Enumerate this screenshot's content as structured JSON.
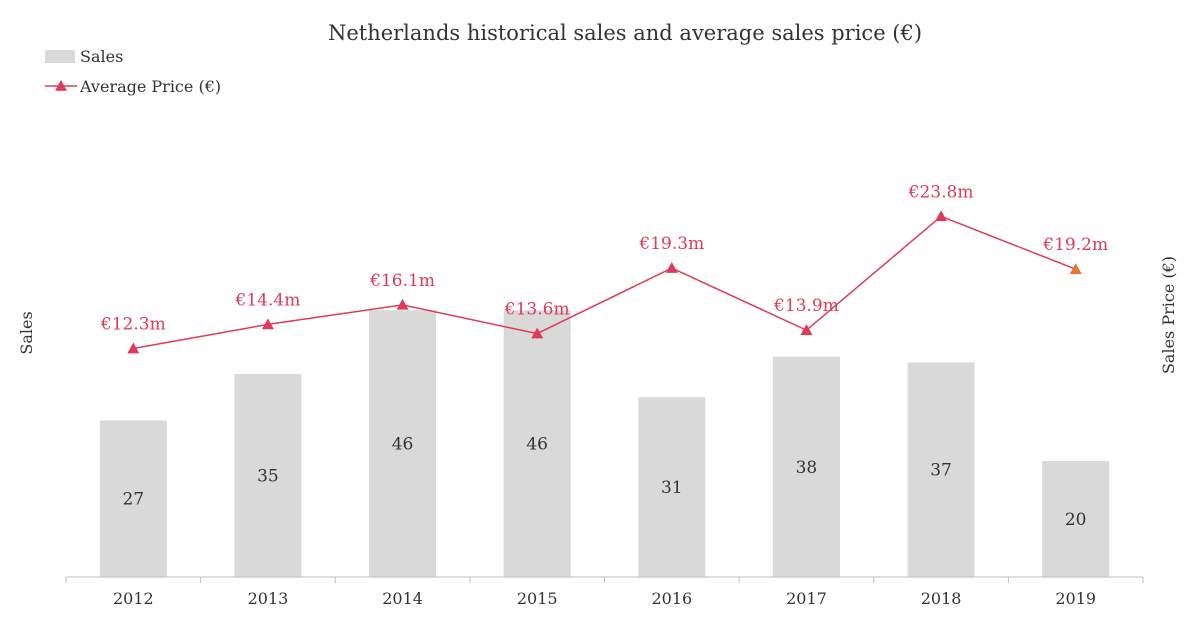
{
  "colors": {
    "bar": "#d9d9d9",
    "line": "#e03a5a",
    "price_label": "#e03a5a",
    "text": "#333333",
    "axis": "#bfbfbf",
    "last_marker": "#e8762c"
  },
  "chart_data": {
    "type": "bar",
    "title": "Netherlands historical sales and average sales price (€)",
    "ylabel_left": "Sales",
    "ylabel_right": "Sales Price (€)",
    "categories": [
      "2012",
      "2013",
      "2014",
      "2015",
      "2016",
      "2017",
      "2018",
      "2019"
    ],
    "legend_position": "top-left",
    "grid": false,
    "series": [
      {
        "name": "Sales",
        "type": "bar",
        "axis": "left",
        "values": [
          27,
          35,
          46,
          46,
          31,
          38,
          37,
          20
        ],
        "labels": [
          "27",
          "35",
          "46",
          "46",
          "31",
          "38",
          "37",
          "20"
        ]
      },
      {
        "name": "Average Price (€)",
        "type": "line",
        "axis": "right",
        "unit": "€m",
        "values": [
          12.3,
          14.4,
          16.1,
          13.6,
          19.3,
          13.9,
          23.8,
          19.2
        ],
        "labels": [
          "€12.3m",
          "€14.4m",
          "€16.1m",
          "€13.6m",
          "€19.3m",
          "€13.9m",
          "€23.8m",
          "€19.2m"
        ]
      }
    ]
  }
}
